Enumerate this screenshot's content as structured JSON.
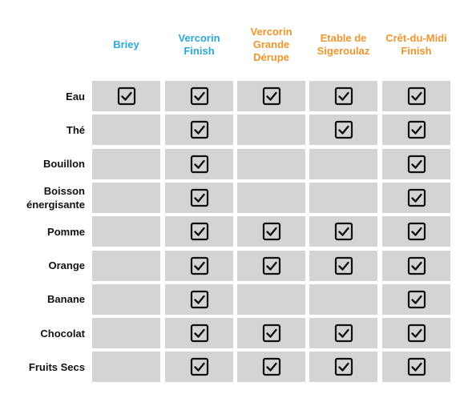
{
  "colors": {
    "blue_header": "#2aa9d6",
    "orange_header": "#f0962c",
    "cell_bg": "#d4d4d4",
    "text": "#111111"
  },
  "columns": [
    {
      "label": "Briey",
      "color": "#2aa9d6"
    },
    {
      "label": "Vercorin\nFinish",
      "color": "#2aa9d6"
    },
    {
      "label": "Vercorin\nGrande\nDérupe",
      "color": "#f0962c"
    },
    {
      "label": "Etable de\nSigeroulaz",
      "color": "#f0962c"
    },
    {
      "label": "Crêt-du-Midi\nFinish",
      "color": "#f0962c"
    }
  ],
  "rows": [
    {
      "label": "Eau",
      "checks": [
        true,
        true,
        true,
        true,
        true
      ]
    },
    {
      "label": "Thé",
      "checks": [
        false,
        true,
        false,
        true,
        true
      ]
    },
    {
      "label": "Bouillon",
      "checks": [
        false,
        true,
        false,
        false,
        true
      ]
    },
    {
      "label": "Boisson\nénergisante",
      "checks": [
        false,
        true,
        false,
        false,
        true
      ]
    },
    {
      "label": "Pomme",
      "checks": [
        false,
        true,
        true,
        true,
        true
      ]
    },
    {
      "label": "Orange",
      "checks": [
        false,
        true,
        true,
        true,
        true
      ]
    },
    {
      "label": "Banane",
      "checks": [
        false,
        true,
        false,
        false,
        true
      ]
    },
    {
      "label": "Chocolat",
      "checks": [
        false,
        true,
        true,
        true,
        true
      ]
    },
    {
      "label": "Fruits Secs",
      "checks": [
        false,
        true,
        true,
        true,
        true
      ]
    }
  ]
}
